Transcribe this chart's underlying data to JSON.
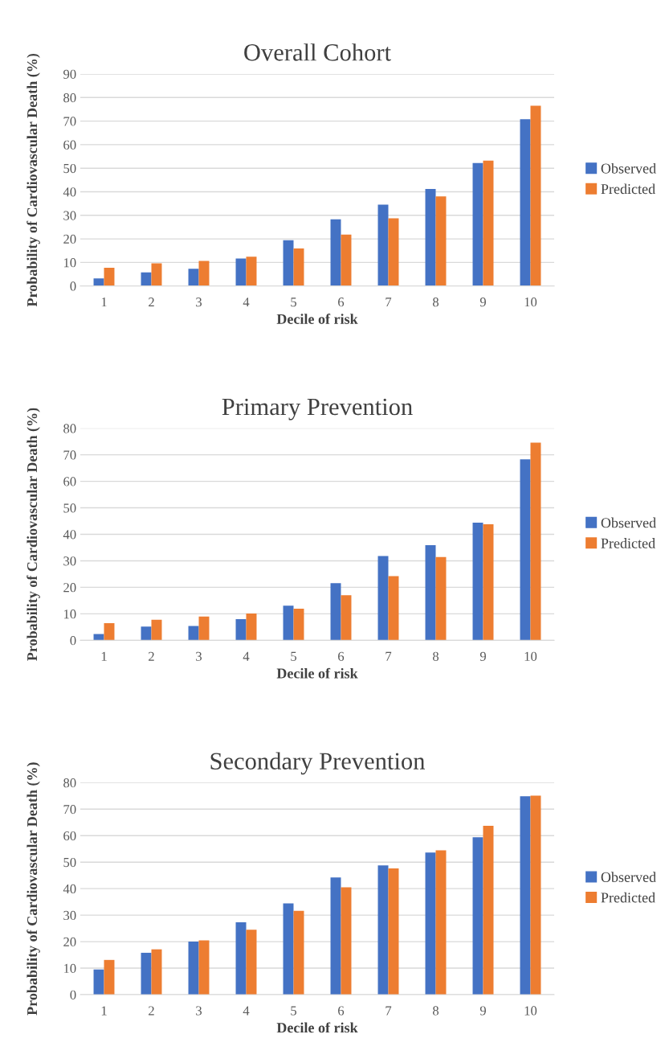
{
  "chart_data": [
    {
      "type": "bar",
      "title": "Overall Cohort",
      "xlabel": "Decile of risk",
      "ylabel": "Probability of Cardiovascular Death (%)",
      "categories": [
        "1",
        "2",
        "3",
        "4",
        "5",
        "6",
        "7",
        "8",
        "9",
        "10"
      ],
      "series": [
        {
          "name": "Observed",
          "color": "#4472c4",
          "values": [
            3.2,
            5.8,
            7.3,
            11.7,
            19.4,
            28.3,
            34.5,
            41.2,
            52.2,
            70.8
          ]
        },
        {
          "name": "Predicted",
          "color": "#ed7d31",
          "values": [
            7.7,
            9.6,
            10.6,
            12.4,
            15.9,
            21.8,
            28.7,
            38.0,
            53.2,
            76.5
          ]
        }
      ],
      "ylim": [
        0,
        90
      ],
      "yticks": [
        0,
        10,
        20,
        30,
        40,
        50,
        60,
        70,
        80,
        90
      ],
      "grid": "y",
      "legend": "right"
    },
    {
      "type": "bar",
      "title": "Primary Prevention",
      "xlabel": "Decile of risk",
      "ylabel": "Probability of Cardiovascular Death (%)",
      "categories": [
        "1",
        "2",
        "3",
        "4",
        "5",
        "6",
        "7",
        "8",
        "9",
        "10"
      ],
      "series": [
        {
          "name": "Observed",
          "color": "#4472c4",
          "values": [
            2.4,
            5.2,
            5.4,
            8.0,
            13.1,
            21.6,
            31.8,
            35.9,
            44.4,
            68.3
          ]
        },
        {
          "name": "Predicted",
          "color": "#ed7d31",
          "values": [
            6.5,
            7.8,
            9.0,
            10.1,
            11.9,
            17.0,
            24.2,
            31.4,
            43.8,
            74.6
          ]
        }
      ],
      "ylim": [
        0,
        80
      ],
      "yticks": [
        0,
        10,
        20,
        30,
        40,
        50,
        60,
        70,
        80
      ],
      "grid": "y",
      "legend": "right"
    },
    {
      "type": "bar",
      "title": "Secondary Prevention",
      "xlabel": "Decile of risk",
      "ylabel": "Probability of Cardiovascular Death (%)",
      "categories": [
        "1",
        "2",
        "3",
        "4",
        "5",
        "6",
        "7",
        "8",
        "9",
        "10"
      ],
      "series": [
        {
          "name": "Observed",
          "color": "#4472c4",
          "values": [
            9.5,
            15.8,
            20.0,
            27.3,
            34.4,
            44.2,
            48.8,
            53.6,
            59.4,
            74.9
          ]
        },
        {
          "name": "Predicted",
          "color": "#ed7d31",
          "values": [
            13.1,
            17.1,
            20.5,
            24.5,
            31.6,
            40.5,
            47.6,
            54.5,
            63.7,
            75.1
          ]
        }
      ],
      "ylim": [
        0,
        80
      ],
      "yticks": [
        0,
        10,
        20,
        30,
        40,
        50,
        60,
        70,
        80
      ],
      "grid": "y",
      "legend": "right"
    }
  ]
}
